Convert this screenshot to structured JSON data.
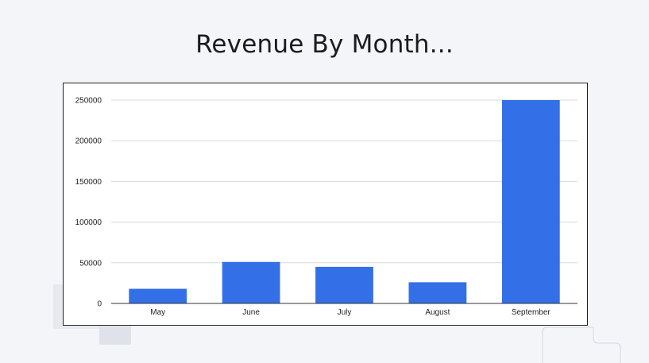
{
  "page": {
    "title": "Revenue By Month..."
  },
  "colors": {
    "background": "#f4f5f9",
    "bar": "#3370e8",
    "grid": "#d9d9d9",
    "axis": "#333333"
  },
  "chart_data": {
    "type": "bar",
    "categories": [
      "May",
      "June",
      "July",
      "August",
      "September"
    ],
    "values": [
      18000,
      51000,
      45000,
      26000,
      250000
    ],
    "ylim": [
      0,
      250000
    ],
    "yticks": [
      0,
      50000,
      100000,
      150000,
      200000,
      250000
    ],
    "ytick_labels": [
      "0",
      "50000",
      "100000",
      "150000",
      "200000",
      "250000"
    ],
    "grid": true,
    "legend": "none"
  }
}
